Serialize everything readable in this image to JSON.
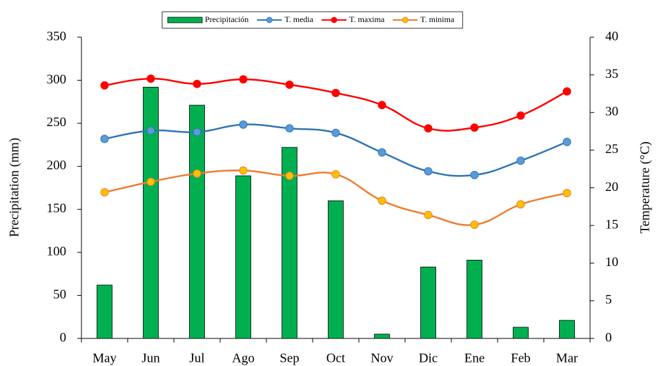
{
  "chart_data": {
    "type": "bar",
    "y_label": "Precipitation (mm)",
    "y2_label": "Temperature (°C)",
    "categories": [
      "May",
      "Jun",
      "Jul",
      "Ago",
      "Sep",
      "Oct",
      "Nov",
      "Dic",
      "Ene",
      "Feb",
      "Mar"
    ],
    "series": [
      {
        "name": "Precipitación",
        "type": "bar",
        "color": "#00b050",
        "values": [
          62,
          292,
          271,
          189,
          222,
          160,
          5,
          83,
          91,
          13,
          21
        ]
      },
      {
        "name": "T. media",
        "type": "line",
        "axis": "y2",
        "color": "#2e75b6",
        "marker_color": "#5b9bd5",
        "values": [
          26.5,
          27.6,
          27.4,
          28.4,
          27.9,
          27.3,
          24.7,
          22.2,
          21.7,
          23.6,
          26.1
        ]
      },
      {
        "name": "T. maxima",
        "type": "line",
        "axis": "y2",
        "color": "#ff0000",
        "marker_color": "#ff0000",
        "values": [
          33.6,
          34.5,
          33.8,
          34.4,
          33.7,
          32.6,
          31.0,
          27.9,
          28.0,
          29.6,
          32.8
        ]
      },
      {
        "name": "T. minima",
        "type": "line",
        "axis": "y2",
        "color": "#ed7d31",
        "marker_color": "#ffc000",
        "values": [
          19.4,
          20.8,
          21.9,
          22.3,
          21.6,
          21.8,
          18.3,
          16.4,
          15.1,
          17.8,
          19.3
        ]
      }
    ],
    "ylim": [
      0,
      350
    ],
    "yticks": [
      0,
      50,
      100,
      150,
      200,
      250,
      300,
      350
    ],
    "y2lim": [
      0,
      40
    ],
    "y2ticks": [
      0,
      5,
      10,
      15,
      20,
      25,
      30,
      35,
      40
    ],
    "legend": "top"
  }
}
